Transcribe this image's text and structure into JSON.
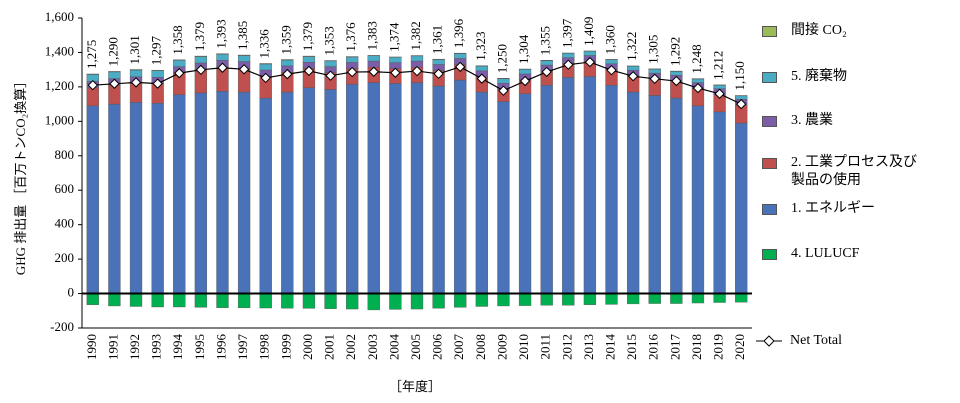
{
  "chart_data": {
    "type": "bar",
    "stacked": true,
    "ylabel": "GHG 排出量 ［百万トンCO₂換算］",
    "xlabel": "［年度］",
    "categories": [
      "1990",
      "1991",
      "1992",
      "1993",
      "1994",
      "1995",
      "1996",
      "1997",
      "1998",
      "1999",
      "2000",
      "2001",
      "2002",
      "2003",
      "2004",
      "2005",
      "2006",
      "2007",
      "2008",
      "2009",
      "2010",
      "2011",
      "2012",
      "2013",
      "2014",
      "2015",
      "2016",
      "2017",
      "2018",
      "2019",
      "2020"
    ],
    "series": [
      {
        "name": "間接 CO₂",
        "color": "#9bbb59",
        "values": [
          3,
          3,
          3,
          3,
          3,
          3,
          3,
          3,
          3,
          3,
          3,
          2,
          2,
          2,
          2,
          2,
          2,
          2,
          2,
          2,
          2,
          2,
          2,
          2,
          2,
          2,
          2,
          2,
          2,
          2,
          2
        ]
      },
      {
        "name": "5. 廃棄物",
        "color": "#4bacc6",
        "values": [
          40,
          39,
          39,
          38,
          37,
          37,
          36,
          35,
          35,
          34,
          33,
          33,
          32,
          31,
          31,
          30,
          29,
          29,
          28,
          27,
          27,
          26,
          25,
          25,
          24,
          23,
          23,
          22,
          21,
          21,
          20
        ]
      },
      {
        "name": "3. 農業",
        "color": "#7b5ea7",
        "values": [
          38,
          38,
          38,
          38,
          38,
          38,
          38,
          38,
          38,
          38,
          36,
          36,
          36,
          36,
          36,
          36,
          36,
          36,
          36,
          36,
          34,
          34,
          34,
          34,
          34,
          34,
          34,
          34,
          34,
          34,
          34
        ]
      },
      {
        "name": "2. 工業プロセス及び製品の使用",
        "color": "#c0504d",
        "values": [
          104,
          110,
          111,
          113,
          125,
          136,
          141,
          139,
          125,
          114,
          112,
          97,
          91,
          89,
          85,
          89,
          89,
          89,
          87,
          70,
          81,
          83,
          81,
          88,
          90,
          93,
          96,
          99,
          101,
          100,
          104
        ]
      },
      {
        "name": "1. エネルギー",
        "color": "#4a72b8",
        "values": [
          1090,
          1100,
          1110,
          1105,
          1155,
          1165,
          1175,
          1170,
          1135,
          1170,
          1195,
          1185,
          1215,
          1225,
          1220,
          1225,
          1205,
          1240,
          1170,
          1115,
          1160,
          1210,
          1255,
          1260,
          1210,
          1170,
          1150,
          1135,
          1090,
          1055,
          990
        ]
      },
      {
        "name": "4. LULUCF",
        "color": "#00b050",
        "values": [
          -65,
          -72,
          -75,
          -78,
          -78,
          -80,
          -82,
          -83,
          -84,
          -85,
          -86,
          -88,
          -90,
          -95,
          -92,
          -90,
          -85,
          -80,
          -75,
          -72,
          -70,
          -68,
          -68,
          -65,
          -63,
          -60,
          -58,
          -58,
          -55,
          -52,
          -50
        ]
      },
      {
        "name": "Net Total",
        "type": "line",
        "color": "#000000",
        "values": [
          1210,
          1218,
          1226,
          1219,
          1280,
          1299,
          1311,
          1302,
          1252,
          1274,
          1293,
          1265,
          1286,
          1288,
          1282,
          1292,
          1276,
          1316,
          1248,
          1178,
          1234,
          1287,
          1329,
          1344,
          1297,
          1262,
          1247,
          1234,
          1193,
          1160,
          1100
        ]
      }
    ],
    "totals": [
      1275,
      1290,
      1301,
      1297,
      1358,
      1379,
      1393,
      1385,
      1336,
      1359,
      1379,
      1353,
      1376,
      1383,
      1374,
      1382,
      1361,
      1396,
      1323,
      1250,
      1304,
      1355,
      1397,
      1409,
      1360,
      1322,
      1305,
      1292,
      1248,
      1212,
      1150
    ],
    "total_labels": [
      "1,275",
      "1,290",
      "1,301",
      "1,297",
      "1,358",
      "1,379",
      "1,393",
      "1,385",
      "1,336",
      "1,359",
      "1,379",
      "1,353",
      "1,376",
      "1,383",
      "1,374",
      "1,382",
      "1,361",
      "1,396",
      "1,323",
      "1,250",
      "1,304",
      "1,355",
      "1,397",
      "1,409",
      "1,360",
      "1,322",
      "1,305",
      "1,292",
      "1,248",
      "1,212",
      "1,150"
    ],
    "ylim": [
      -200,
      1600
    ],
    "yticks": [
      -200,
      0,
      200,
      400,
      600,
      800,
      {
        "value": 1000,
        "label": "1,000"
      },
      {
        "value": 1200,
        "label": "1,200"
      },
      {
        "value": 1400,
        "label": "1,400"
      },
      {
        "value": 1600,
        "label": "1,600"
      }
    ]
  }
}
